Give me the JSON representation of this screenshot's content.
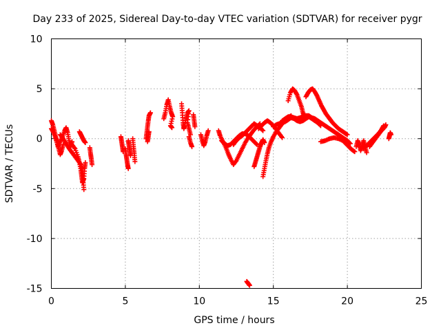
{
  "chart_data": {
    "type": "scatter",
    "title": "Day 233 of 2025, Sidereal Day-to-day VTEC variation (SDTVAR) for receiver pygr",
    "xlabel": "GPS time / hours",
    "ylabel": "SDTVAR / TECUs",
    "xlim": [
      0,
      25
    ],
    "ylim": [
      -15,
      10
    ],
    "xticks": [
      "0",
      "5",
      "10",
      "15",
      "20",
      "25"
    ],
    "yticks": [
      "-15",
      "-10",
      "-5",
      "0",
      "5",
      "10"
    ],
    "grid": true,
    "marker": "plus",
    "color": "#ff0000",
    "series": [
      {
        "name": "arc-01",
        "points": [
          [
            0.0,
            1.8
          ],
          [
            0.1,
            1.4
          ],
          [
            0.2,
            0.8
          ],
          [
            0.3,
            0.2
          ],
          [
            0.4,
            -0.4
          ],
          [
            0.5,
            -1.0
          ],
          [
            0.6,
            -1.6
          ],
          [
            0.7,
            -1.2
          ],
          [
            0.8,
            -0.6
          ]
        ]
      },
      {
        "name": "arc-02",
        "points": [
          [
            0.0,
            1.0
          ],
          [
            0.15,
            0.6
          ],
          [
            0.3,
            0.0
          ],
          [
            0.45,
            -0.8
          ],
          [
            0.6,
            -0.3
          ],
          [
            0.75,
            0.2
          ],
          [
            0.9,
            0.8
          ],
          [
            1.0,
            1.1
          ],
          [
            1.1,
            0.6
          ],
          [
            1.2,
            -0.2
          ],
          [
            1.3,
            -0.8
          ],
          [
            1.4,
            -0.3
          ]
        ]
      },
      {
        "name": "arc-03",
        "points": [
          [
            0.6,
            0.4
          ],
          [
            0.8,
            0.0
          ],
          [
            1.0,
            -0.5
          ],
          [
            1.2,
            -1.0
          ],
          [
            1.4,
            -1.4
          ],
          [
            1.6,
            -1.8
          ],
          [
            1.8,
            -2.2
          ],
          [
            2.0,
            -2.6
          ],
          [
            2.1,
            -3.2
          ],
          [
            2.15,
            -4.2
          ],
          [
            2.2,
            -5.1
          ]
        ]
      },
      {
        "name": "arc-04",
        "points": [
          [
            1.4,
            -0.6
          ],
          [
            1.6,
            -1.0
          ],
          [
            1.8,
            -1.8
          ],
          [
            1.9,
            -2.4
          ],
          [
            2.0,
            -3.2
          ],
          [
            2.05,
            -3.8
          ],
          [
            2.1,
            -4.4
          ],
          [
            2.2,
            -4.0
          ],
          [
            2.25,
            -3.0
          ],
          [
            2.3,
            -2.4
          ]
        ]
      },
      {
        "name": "arc-05",
        "points": [
          [
            1.9,
            0.7
          ],
          [
            2.0,
            0.4
          ],
          [
            2.1,
            0.1
          ],
          [
            2.2,
            -0.2
          ],
          [
            2.3,
            -0.4
          ]
        ]
      },
      {
        "name": "arc-06",
        "points": [
          [
            2.6,
            -0.9
          ],
          [
            2.65,
            -1.5
          ],
          [
            2.7,
            -2.0
          ],
          [
            2.75,
            -2.6
          ]
        ]
      },
      {
        "name": "arc-07",
        "points": [
          [
            4.7,
            0.2
          ],
          [
            4.75,
            -0.3
          ],
          [
            4.8,
            -0.8
          ],
          [
            4.85,
            -1.3
          ]
        ]
      },
      {
        "name": "arc-08",
        "points": [
          [
            5.0,
            -1.0
          ],
          [
            5.05,
            -1.6
          ],
          [
            5.1,
            -2.1
          ],
          [
            5.15,
            -2.6
          ],
          [
            5.2,
            -3.0
          ]
        ]
      },
      {
        "name": "arc-09",
        "points": [
          [
            5.2,
            -0.2
          ],
          [
            5.25,
            -0.7
          ],
          [
            5.3,
            -1.2
          ],
          [
            5.35,
            -1.7
          ]
        ]
      },
      {
        "name": "arc-10",
        "points": [
          [
            5.5,
            0.0
          ],
          [
            5.55,
            -0.8
          ],
          [
            5.6,
            -1.5
          ],
          [
            5.65,
            -2.3
          ]
        ]
      },
      {
        "name": "arc-11",
        "points": [
          [
            6.4,
            0.0
          ],
          [
            6.45,
            0.6
          ],
          [
            6.5,
            1.2
          ],
          [
            6.55,
            1.8
          ],
          [
            6.6,
            2.3
          ],
          [
            6.7,
            2.6
          ]
        ]
      },
      {
        "name": "arc-12",
        "points": [
          [
            6.5,
            -0.3
          ],
          [
            6.55,
            0.2
          ],
          [
            6.6,
            0.7
          ]
        ]
      },
      {
        "name": "arc-13",
        "points": [
          [
            7.6,
            2.0
          ],
          [
            7.7,
            2.6
          ],
          [
            7.8,
            3.4
          ],
          [
            7.9,
            3.9
          ],
          [
            8.0,
            3.2
          ],
          [
            8.1,
            2.6
          ],
          [
            8.2,
            2.2
          ],
          [
            8.05,
            1.3
          ],
          [
            8.15,
            1.1
          ]
        ]
      },
      {
        "name": "arc-14",
        "points": [
          [
            8.8,
            3.5
          ],
          [
            8.85,
            2.6
          ],
          [
            8.9,
            1.6
          ],
          [
            8.95,
            1.0
          ],
          [
            9.0,
            1.3
          ],
          [
            9.1,
            2.0
          ],
          [
            9.2,
            2.6
          ],
          [
            9.3,
            2.8
          ],
          [
            9.2,
            1.6
          ],
          [
            9.3,
            1.0
          ],
          [
            9.4,
            0.4
          ]
        ]
      },
      {
        "name": "arc-15",
        "points": [
          [
            9.3,
            0.2
          ],
          [
            9.4,
            -0.4
          ],
          [
            9.5,
            -0.8
          ]
        ]
      },
      {
        "name": "arc-16",
        "points": [
          [
            9.6,
            2.4
          ],
          [
            9.65,
            1.8
          ],
          [
            9.7,
            1.2
          ]
        ]
      },
      {
        "name": "arc-17",
        "points": [
          [
            10.1,
            0.4
          ],
          [
            10.2,
            -0.2
          ],
          [
            10.3,
            -0.7
          ],
          [
            10.4,
            -0.3
          ],
          [
            10.5,
            0.3
          ],
          [
            10.6,
            0.8
          ]
        ]
      },
      {
        "name": "arc-18",
        "points": [
          [
            11.3,
            0.8
          ],
          [
            11.4,
            0.3
          ],
          [
            11.6,
            -0.3
          ],
          [
            11.8,
            -0.9
          ],
          [
            11.95,
            -1.5
          ],
          [
            12.1,
            -2.0
          ],
          [
            12.3,
            -2.6
          ],
          [
            12.5,
            -2.2
          ],
          [
            12.7,
            -1.6
          ],
          [
            12.9,
            -1.0
          ],
          [
            13.1,
            -0.4
          ],
          [
            13.3,
            0.1
          ],
          [
            13.5,
            0.5
          ],
          [
            13.7,
            0.9
          ],
          [
            13.9,
            1.2
          ],
          [
            14.1,
            1.5
          ]
        ]
      },
      {
        "name": "arc-19",
        "points": [
          [
            11.5,
            -0.2
          ],
          [
            11.7,
            -0.5
          ],
          [
            11.9,
            -0.7
          ],
          [
            12.1,
            -0.6
          ],
          [
            12.3,
            -0.3
          ],
          [
            12.5,
            0.0
          ],
          [
            12.7,
            0.3
          ],
          [
            12.9,
            0.5
          ],
          [
            13.1,
            0.5
          ],
          [
            13.3,
            0.3
          ],
          [
            13.5,
            0.0
          ],
          [
            13.7,
            -0.3
          ],
          [
            13.9,
            -0.6
          ]
        ]
      },
      {
        "name": "arc-20",
        "points": [
          [
            12.3,
            -0.6
          ],
          [
            12.5,
            -0.2
          ],
          [
            12.7,
            0.1
          ],
          [
            12.9,
            0.3
          ],
          [
            13.1,
            0.6
          ],
          [
            13.3,
            0.9
          ],
          [
            13.5,
            1.2
          ],
          [
            13.7,
            1.5
          ],
          [
            13.9,
            1.3
          ],
          [
            14.1,
            1.1
          ],
          [
            14.3,
            0.8
          ]
        ]
      },
      {
        "name": "arc-21",
        "points": [
          [
            13.7,
            -2.8
          ],
          [
            13.8,
            -2.3
          ],
          [
            13.9,
            -1.8
          ],
          [
            14.0,
            -1.3
          ],
          [
            14.1,
            -0.8
          ],
          [
            14.2,
            -0.4
          ],
          [
            14.3,
            -0.1
          ],
          [
            14.4,
            -0.4
          ]
        ]
      },
      {
        "name": "arc-22",
        "points": [
          [
            14.3,
            -3.8
          ],
          [
            14.4,
            -3.0
          ],
          [
            14.5,
            -2.2
          ],
          [
            14.6,
            -1.5
          ],
          [
            14.7,
            -0.9
          ],
          [
            14.85,
            -0.3
          ],
          [
            15.0,
            0.2
          ],
          [
            15.2,
            0.7
          ],
          [
            15.4,
            1.1
          ],
          [
            15.6,
            1.5
          ],
          [
            15.8,
            1.8
          ],
          [
            16.0,
            2.1
          ],
          [
            16.2,
            2.3
          ]
        ]
      },
      {
        "name": "arc-23",
        "points": [
          [
            14.0,
            1.0
          ],
          [
            14.2,
            1.3
          ],
          [
            14.4,
            1.6
          ],
          [
            14.6,
            1.8
          ],
          [
            14.8,
            1.6
          ],
          [
            15.0,
            1.3
          ],
          [
            15.2,
            0.9
          ],
          [
            15.4,
            0.5
          ],
          [
            15.6,
            0.1
          ]
        ]
      },
      {
        "name": "arc-24",
        "points": [
          [
            15.0,
            1.2
          ],
          [
            15.2,
            1.4
          ],
          [
            15.4,
            1.5
          ],
          [
            15.6,
            1.6
          ],
          [
            15.8,
            1.7
          ],
          [
            16.0,
            1.9
          ],
          [
            16.2,
            2.1
          ],
          [
            16.4,
            2.0
          ],
          [
            16.6,
            1.8
          ],
          [
            16.8,
            1.7
          ],
          [
            17.0,
            1.8
          ],
          [
            17.2,
            2.0
          ],
          [
            17.4,
            2.2
          ],
          [
            17.6,
            2.0
          ],
          [
            17.8,
            1.8
          ],
          [
            18.0,
            1.6
          ],
          [
            18.2,
            1.3
          ]
        ]
      },
      {
        "name": "arc-25",
        "points": [
          [
            16.0,
            3.8
          ],
          [
            16.15,
            4.6
          ],
          [
            16.3,
            5.0
          ],
          [
            16.45,
            4.8
          ],
          [
            16.6,
            4.4
          ],
          [
            16.75,
            3.8
          ],
          [
            16.9,
            3.2
          ],
          [
            17.0,
            2.6
          ],
          [
            17.1,
            2.2
          ]
        ]
      },
      {
        "name": "arc-26",
        "points": [
          [
            15.6,
            1.8
          ],
          [
            15.8,
            2.0
          ],
          [
            16.0,
            2.2
          ],
          [
            16.2,
            2.2
          ],
          [
            16.4,
            2.1
          ],
          [
            16.6,
            2.0
          ],
          [
            16.8,
            2.1
          ],
          [
            17.0,
            2.2
          ],
          [
            17.2,
            2.3
          ],
          [
            17.4,
            2.3
          ],
          [
            17.6,
            2.1
          ],
          [
            17.8,
            2.0
          ],
          [
            18.0,
            1.8
          ],
          [
            18.2,
            1.6
          ],
          [
            18.4,
            1.4
          ],
          [
            18.6,
            1.2
          ],
          [
            18.8,
            1.0
          ],
          [
            19.0,
            0.8
          ],
          [
            19.2,
            0.6
          ],
          [
            19.4,
            0.4
          ],
          [
            19.6,
            0.2
          ],
          [
            19.8,
            0.0
          ],
          [
            20.0,
            -0.2
          ],
          [
            20.2,
            -0.5
          ]
        ]
      },
      {
        "name": "arc-27",
        "points": [
          [
            17.2,
            4.2
          ],
          [
            17.35,
            4.6
          ],
          [
            17.5,
            4.9
          ],
          [
            17.65,
            5.0
          ],
          [
            17.8,
            4.7
          ],
          [
            17.95,
            4.3
          ],
          [
            18.1,
            3.8
          ],
          [
            18.25,
            3.3
          ],
          [
            18.4,
            2.9
          ],
          [
            18.55,
            2.5
          ],
          [
            18.7,
            2.2
          ],
          [
            18.85,
            1.9
          ],
          [
            19.0,
            1.6
          ],
          [
            19.2,
            1.3
          ],
          [
            19.4,
            1.0
          ],
          [
            19.6,
            0.8
          ],
          [
            19.8,
            0.6
          ],
          [
            20.0,
            0.4
          ]
        ]
      },
      {
        "name": "arc-28",
        "points": [
          [
            18.2,
            -0.3
          ],
          [
            18.5,
            -0.2
          ],
          [
            18.8,
            0.0
          ],
          [
            19.1,
            0.1
          ],
          [
            19.4,
            0.0
          ],
          [
            19.7,
            -0.2
          ],
          [
            19.9,
            -0.5
          ],
          [
            20.1,
            -0.8
          ],
          [
            20.3,
            -1.1
          ],
          [
            20.5,
            -1.3
          ]
        ]
      },
      {
        "name": "arc-29",
        "points": [
          [
            20.6,
            -0.8
          ],
          [
            20.7,
            -0.2
          ],
          [
            20.8,
            -0.6
          ],
          [
            20.9,
            -1.2
          ],
          [
            21.0,
            -0.7
          ],
          [
            21.1,
            -0.2
          ],
          [
            21.2,
            -0.8
          ],
          [
            21.3,
            -1.4
          ]
        ]
      },
      {
        "name": "arc-30",
        "points": [
          [
            21.1,
            -1.0
          ],
          [
            21.3,
            -0.7
          ],
          [
            21.5,
            -0.4
          ],
          [
            21.7,
            -0.1
          ],
          [
            21.9,
            0.2
          ],
          [
            22.1,
            0.5
          ],
          [
            22.3,
            0.9
          ],
          [
            22.45,
            1.3
          ]
        ]
      },
      {
        "name": "arc-31",
        "points": [
          [
            21.5,
            -0.8
          ],
          [
            21.7,
            -0.4
          ],
          [
            21.9,
            0.0
          ],
          [
            22.1,
            0.4
          ],
          [
            22.3,
            0.8
          ],
          [
            22.5,
            1.1
          ],
          [
            22.6,
            1.4
          ]
        ]
      },
      {
        "name": "arc-32",
        "points": [
          [
            22.8,
            0.0
          ],
          [
            22.85,
            0.3
          ],
          [
            22.9,
            0.6
          ],
          [
            22.95,
            0.4
          ]
        ]
      },
      {
        "name": "arc-33",
        "points": [
          [
            13.2,
            -14.3
          ],
          [
            13.3,
            -14.5
          ],
          [
            13.4,
            -14.7
          ]
        ]
      }
    ]
  }
}
